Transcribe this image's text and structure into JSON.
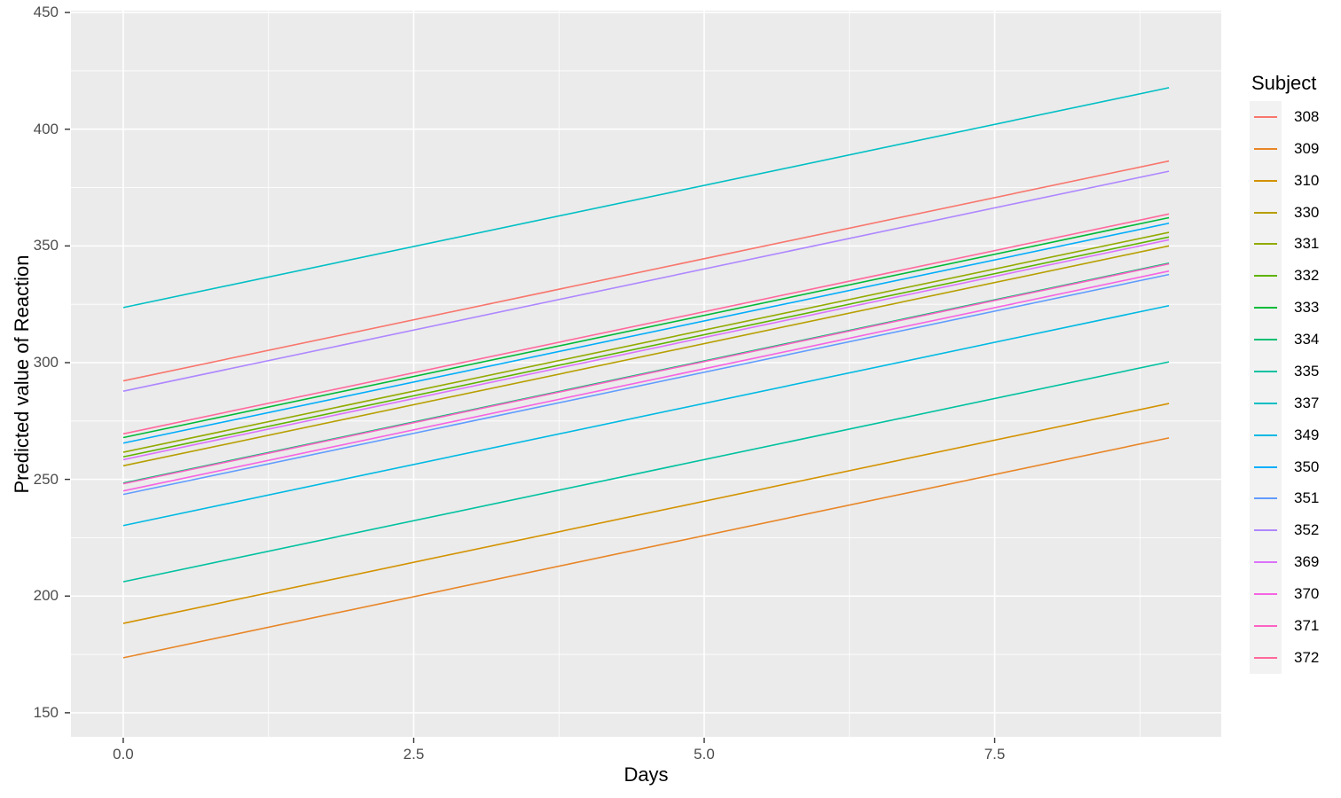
{
  "chart_data": {
    "type": "line",
    "title": "",
    "xlabel": "Days",
    "ylabel": "Predicted value of Reaction",
    "legend_title": "Subject",
    "legend_position": "right",
    "grid": true,
    "xlim": [
      -0.45,
      9.45
    ],
    "ylim": [
      139.7,
      450.8
    ],
    "x_ticks": [
      0,
      2.5,
      5,
      7.5
    ],
    "x_tick_labels": [
      "0.0",
      "2.5",
      "5.0",
      "7.5"
    ],
    "y_ticks": [
      150,
      200,
      250,
      300,
      350,
      400,
      450
    ],
    "y_tick_labels": [
      "150",
      "200",
      "250",
      "300",
      "350",
      "400",
      "450"
    ],
    "x_values": [
      0,
      9
    ],
    "series": [
      {
        "name": "308",
        "color": "#F8766D",
        "y": [
          292.19,
          386.4
        ]
      },
      {
        "name": "309",
        "color": "#E88526",
        "y": [
          173.56,
          267.76
        ]
      },
      {
        "name": "310",
        "color": "#D39200",
        "y": [
          188.3,
          282.5
        ]
      },
      {
        "name": "330",
        "color": "#B79F00",
        "y": [
          255.81,
          350.02
        ]
      },
      {
        "name": "331",
        "color": "#93AA00",
        "y": [
          261.62,
          355.82
        ]
      },
      {
        "name": "332",
        "color": "#5EB300",
        "y": [
          259.63,
          353.83
        ]
      },
      {
        "name": "333",
        "color": "#00BA38",
        "y": [
          267.91,
          362.11
        ]
      },
      {
        "name": "334",
        "color": "#00BF74",
        "y": [
          248.41,
          342.61
        ]
      },
      {
        "name": "335",
        "color": "#00C19F",
        "y": [
          206.12,
          300.33
        ]
      },
      {
        "name": "337",
        "color": "#00BFC4",
        "y": [
          323.59,
          417.79
        ]
      },
      {
        "name": "349",
        "color": "#00B9E3",
        "y": [
          230.21,
          324.41
        ]
      },
      {
        "name": "350",
        "color": "#00ADFA",
        "y": [
          265.52,
          359.72
        ]
      },
      {
        "name": "351",
        "color": "#619CFF",
        "y": [
          243.54,
          337.75
        ]
      },
      {
        "name": "352",
        "color": "#AE87FF",
        "y": [
          287.78,
          382.0
        ]
      },
      {
        "name": "369",
        "color": "#DB72FB",
        "y": [
          258.44,
          352.64
        ]
      },
      {
        "name": "370",
        "color": "#F564E3",
        "y": [
          245.04,
          339.25
        ]
      },
      {
        "name": "371",
        "color": "#FF61C3",
        "y": [
          248.11,
          342.31
        ]
      },
      {
        "name": "372",
        "color": "#FF699C",
        "y": [
          269.49,
          363.7
        ]
      }
    ],
    "colors": {
      "panel_background": "#EBEBEB",
      "gridline": "#FFFFFF",
      "tick_mark": "#333333",
      "tick_label": "#4D4D4D",
      "axis_title": "#000000",
      "legend_key_background": "#F2F2F2"
    }
  }
}
